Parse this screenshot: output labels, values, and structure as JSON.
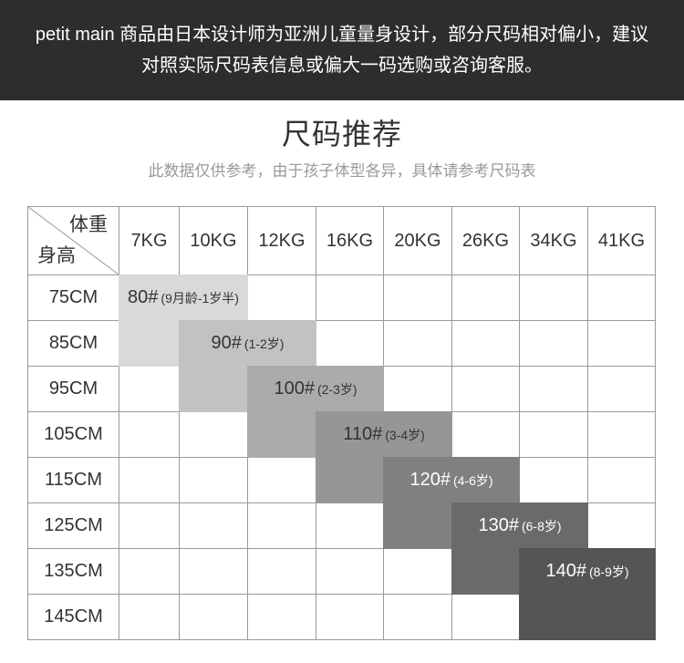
{
  "banner": {
    "line1": "petit main 商品由日本设计师为亚洲儿童量身设计，部分尺码相对偏小，建议",
    "line2": "对照实际尺码表信息或偏大一码选购或咨询客服。"
  },
  "title": "尺码推荐",
  "subtitle": "此数据仅供参考，由于孩子体型各异，具体请参考尺码表",
  "size_table": {
    "corner_top": "体重",
    "corner_bottom": "身高",
    "weights": [
      "7KG",
      "10KG",
      "12KG",
      "16KG",
      "20KG",
      "26KG",
      "34KG",
      "41KG"
    ],
    "heights": [
      "75CM",
      "85CM",
      "95CM",
      "105CM",
      "115CM",
      "125CM",
      "135CM",
      "145CM"
    ],
    "sizes": [
      {
        "size": "80#",
        "age": "(9月龄-1岁半)",
        "color": "#d9d9d9",
        "text_color": "#333333",
        "cells": [
          [
            "75CM",
            "7KG"
          ],
          [
            "75CM",
            "10KG"
          ],
          [
            "85CM",
            "7KG"
          ]
        ]
      },
      {
        "size": "90#",
        "age": "(1-2岁)",
        "color": "#c2c2c2",
        "text_color": "#333333",
        "cells": [
          [
            "85CM",
            "10KG"
          ],
          [
            "85CM",
            "12KG"
          ],
          [
            "95CM",
            "10KG"
          ]
        ]
      },
      {
        "size": "100#",
        "age": "(2-3岁)",
        "color": "#ababab",
        "text_color": "#333333",
        "cells": [
          [
            "95CM",
            "12KG"
          ],
          [
            "95CM",
            "16KG"
          ],
          [
            "105CM",
            "12KG"
          ]
        ]
      },
      {
        "size": "110#",
        "age": "(3-4岁)",
        "color": "#969696",
        "text_color": "#333333",
        "cells": [
          [
            "105CM",
            "16KG"
          ],
          [
            "105CM",
            "20KG"
          ],
          [
            "115CM",
            "16KG"
          ]
        ]
      },
      {
        "size": "120#",
        "age": "(4-6岁)",
        "color": "#808080",
        "text_color": "#ffffff",
        "cells": [
          [
            "115CM",
            "20KG"
          ],
          [
            "115CM",
            "26KG"
          ],
          [
            "125CM",
            "20KG"
          ]
        ]
      },
      {
        "size": "130#",
        "age": "(6-8岁)",
        "color": "#6a6a6a",
        "text_color": "#ffffff",
        "cells": [
          [
            "125CM",
            "26KG"
          ],
          [
            "125CM",
            "34KG"
          ],
          [
            "135CM",
            "26KG"
          ]
        ]
      },
      {
        "size": "140#",
        "age": "(8-9岁)",
        "color": "#555555",
        "text_color": "#ffffff",
        "cells": [
          [
            "135CM",
            "34KG"
          ],
          [
            "135CM",
            "41KG"
          ],
          [
            "145CM",
            "34KG"
          ],
          [
            "145CM",
            "41KG"
          ]
        ]
      }
    ]
  },
  "colors": {
    "banner_bg": "#2d2d2d",
    "banner_text": "#ffffff",
    "grid_line": "#9a9a9a",
    "title_text": "#333333",
    "subtitle_text": "#999999"
  }
}
